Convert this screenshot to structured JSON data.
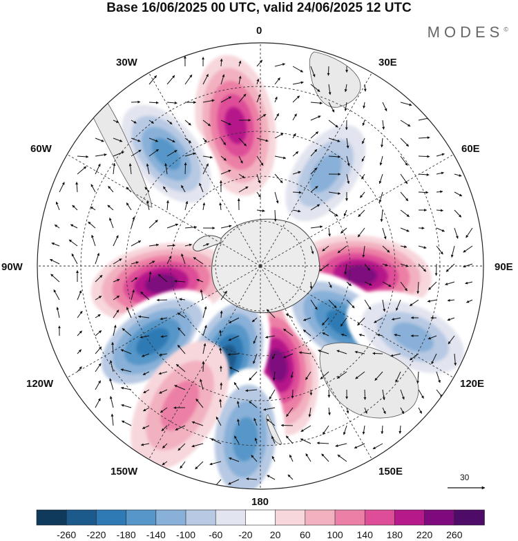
{
  "title": "Base 16/06/2025 00 UTC, valid 24/06/2025 12 UTC",
  "brand": "MODES",
  "brand_mark": "©",
  "lon_labels": {
    "top": "0",
    "top_right": "30E",
    "right_upper": "60E",
    "right": "90E",
    "right_lower": "120E",
    "bottom_right": "150E",
    "bottom": "180",
    "bottom_left": "150W",
    "left_lower": "120W",
    "left": "90W",
    "left_upper": "60W",
    "top_left": "30W"
  },
  "colorbar": {
    "ticks": [
      "-260",
      "-220",
      "-180",
      "-140",
      "-100",
      "-60",
      "-20",
      "20",
      "60",
      "100",
      "140",
      "180",
      "220",
      "260"
    ],
    "colors": [
      "#0f3a5c",
      "#1c5a8c",
      "#2f7ab5",
      "#5796c8",
      "#88b0d8",
      "#b7c9e3",
      "#e2e4ef",
      "#ffffff",
      "#f7d7db",
      "#f2b1bf",
      "#ec7fa5",
      "#de4e98",
      "#b5198a",
      "#7e0a7e",
      "#4e0b67"
    ]
  },
  "reference_vector": "30",
  "map": {
    "projection": "south-polar-stereographic",
    "continents": [
      "Antarctica",
      "South America",
      "Africa",
      "Australia",
      "New Zealand"
    ],
    "anomalies": [
      {
        "lon": -100,
        "lat_ring": 0.55,
        "value": 240
      },
      {
        "lon": 95,
        "lat_ring": 0.55,
        "value": 220
      },
      {
        "lon": 170,
        "lat_ring": 0.55,
        "value": 240
      },
      {
        "lon": -10,
        "lat_ring": 0.78,
        "value": 200
      },
      {
        "lon": -125,
        "lat_ring": 0.72,
        "value": -200
      },
      {
        "lon": -160,
        "lat_ring": 0.55,
        "value": -240
      },
      {
        "lon": 125,
        "lat_ring": 0.55,
        "value": -200
      },
      {
        "lon": -40,
        "lat_ring": 0.8,
        "value": -180
      },
      {
        "lon": 35,
        "lat_ring": 0.62,
        "value": -140
      },
      {
        "lon": -175,
        "lat_ring": 0.95,
        "value": -160
      },
      {
        "lon": -150,
        "lat_ring": 0.88,
        "value": 120
      },
      {
        "lon": 115,
        "lat_ring": 0.92,
        "value": -140
      }
    ]
  }
}
